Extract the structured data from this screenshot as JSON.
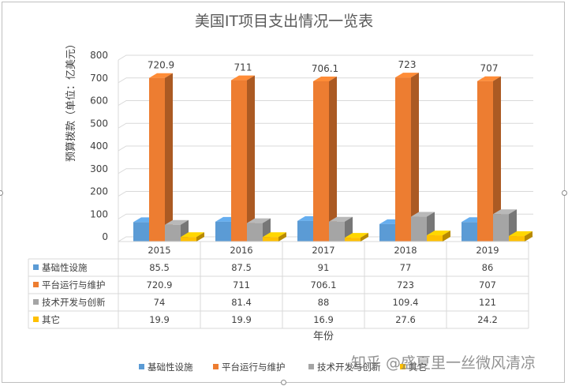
{
  "chart_data": {
    "type": "bar",
    "title": "美国IT项目支出情况一览表",
    "ylabel": "预算拨款（单位：亿美元）",
    "xlabel": "年份",
    "categories": [
      "2015",
      "2016",
      "2017",
      "2018",
      "2019"
    ],
    "ylim": [
      0,
      800
    ],
    "yticks": [
      0,
      100,
      200,
      300,
      400,
      500,
      600,
      700,
      800
    ],
    "grid": true,
    "legend_position": "bottom",
    "data_table": true,
    "series": [
      {
        "name": "基础性设施",
        "color": "#5b9bd5",
        "values": [
          85.5,
          87.5,
          91,
          77,
          86
        ]
      },
      {
        "name": "平台运行与维护",
        "color": "#ed7d31",
        "values": [
          720.9,
          711,
          706.1,
          723,
          707
        ]
      },
      {
        "name": "技术开发与创新",
        "color": "#a5a5a5",
        "values": [
          74,
          81.4,
          88,
          109.4,
          121
        ]
      },
      {
        "name": "其它",
        "color": "#ffc000",
        "values": [
          19.9,
          19.9,
          16.9,
          27.6,
          24.2
        ]
      }
    ],
    "data_labels": {
      "series": "平台运行与维护",
      "values": [
        "720.9",
        "711",
        "706.1",
        "723",
        "707"
      ]
    },
    "table_rows": [
      [
        "85.5",
        "87.5",
        "91",
        "77",
        "86"
      ],
      [
        "720.9",
        "711",
        "706.1",
        "723",
        "707"
      ],
      [
        "74",
        "81.4",
        "88",
        "109.4",
        "121"
      ],
      [
        "19.9",
        "19.9",
        "16.9",
        "27.6",
        "24.2"
      ]
    ]
  },
  "watermark": "知乎 @盛夏里一丝微风清凉"
}
